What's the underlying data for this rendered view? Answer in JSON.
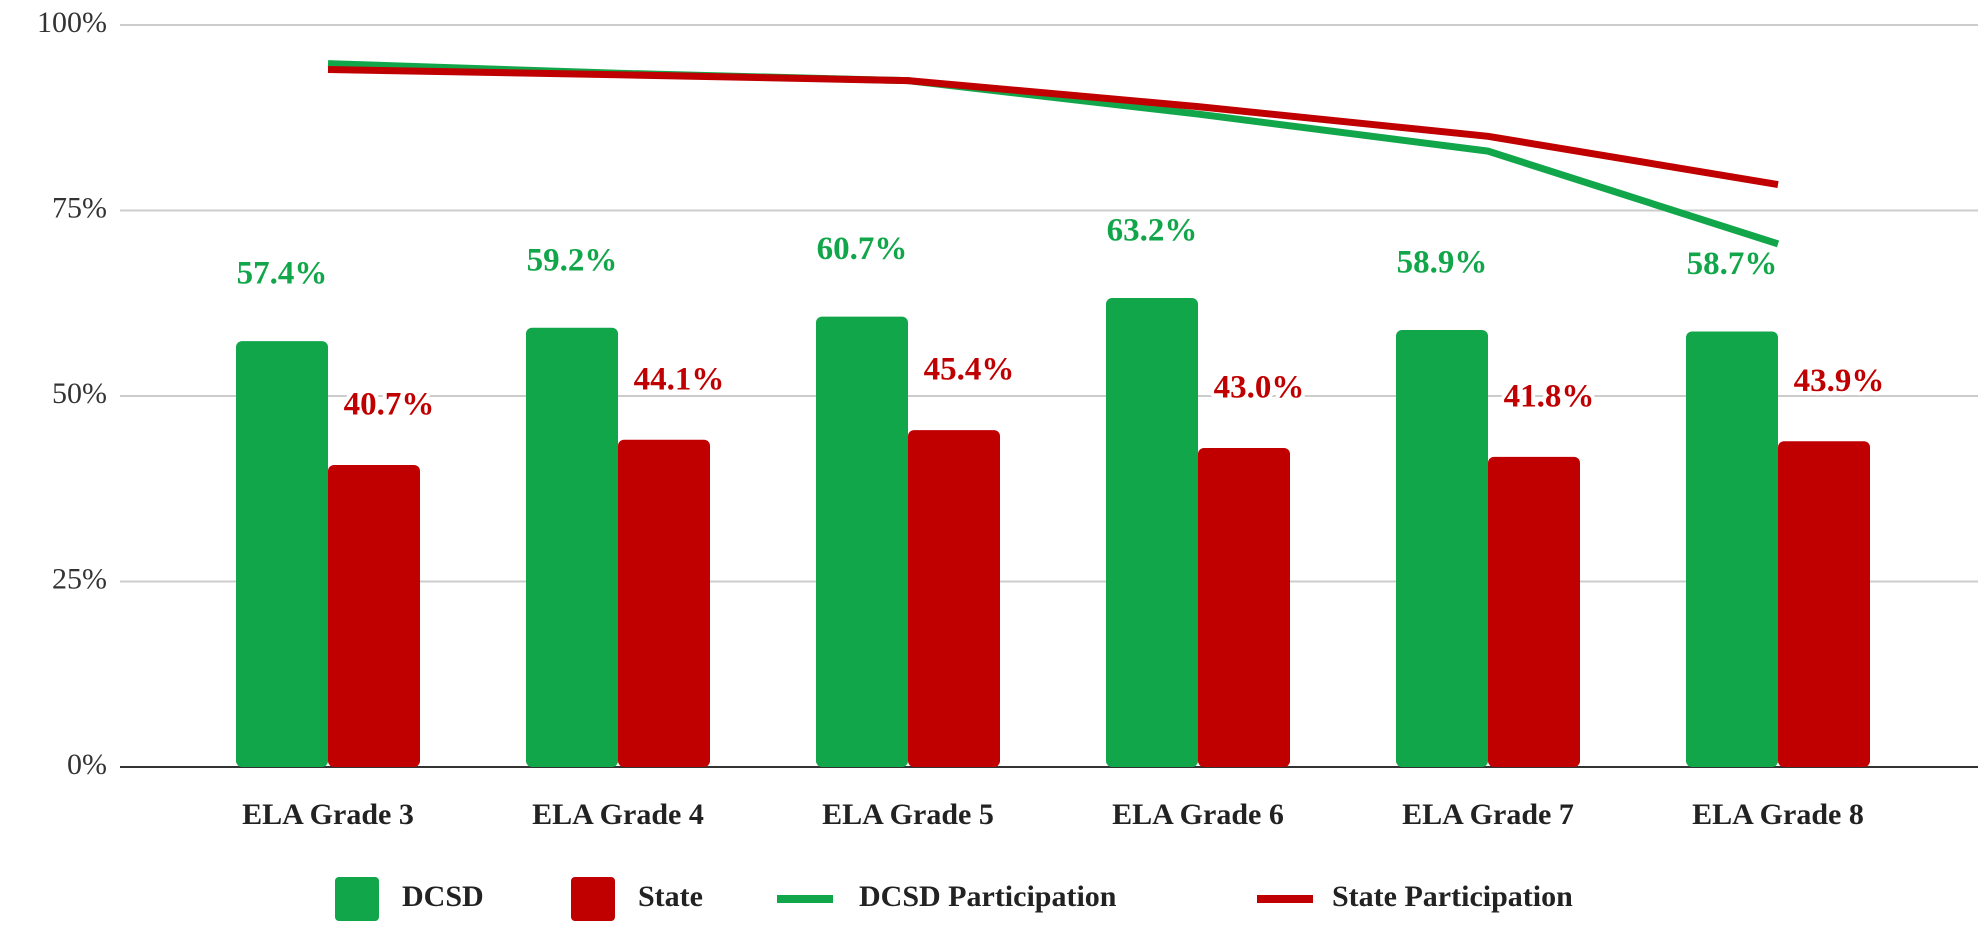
{
  "chart_data": {
    "type": "bar",
    "categories": [
      "ELA Grade 3",
      "ELA Grade 4",
      "ELA Grade 5",
      "ELA Grade 6",
      "ELA Grade 7",
      "ELA Grade 8"
    ],
    "series": [
      {
        "name": "DCSD",
        "type": "bar",
        "color": "#12a64b",
        "values": [
          57.4,
          59.2,
          60.7,
          63.2,
          58.9,
          58.7
        ],
        "value_labels": [
          "57.4%",
          "59.2%",
          "60.7%",
          "63.2%",
          "58.9%",
          "58.7%"
        ]
      },
      {
        "name": "State",
        "type": "bar",
        "color": "#c00000",
        "values": [
          40.7,
          44.1,
          45.4,
          43.0,
          41.8,
          43.9
        ],
        "value_labels": [
          "40.7%",
          "44.1%",
          "45.4%",
          "43.0%",
          "41.8%",
          "43.9%"
        ]
      },
      {
        "name": "DCSD Participation",
        "type": "line",
        "color": "#12a64b",
        "values": [
          94.8,
          93.5,
          92.5,
          88.0,
          83.0,
          70.5
        ]
      },
      {
        "name": "State Participation",
        "type": "line",
        "color": "#c00000",
        "values": [
          94.0,
          93.3,
          92.5,
          89.0,
          85.0,
          78.5
        ]
      }
    ],
    "ylim": [
      0,
      100
    ],
    "yticks": [
      {
        "value": 0,
        "label": "0%"
      },
      {
        "value": 25,
        "label": "25%"
      },
      {
        "value": 50,
        "label": "50%"
      },
      {
        "value": 75,
        "label": "75%"
      },
      {
        "value": 100,
        "label": "100%"
      }
    ],
    "grid": true,
    "legend": "bottom"
  }
}
